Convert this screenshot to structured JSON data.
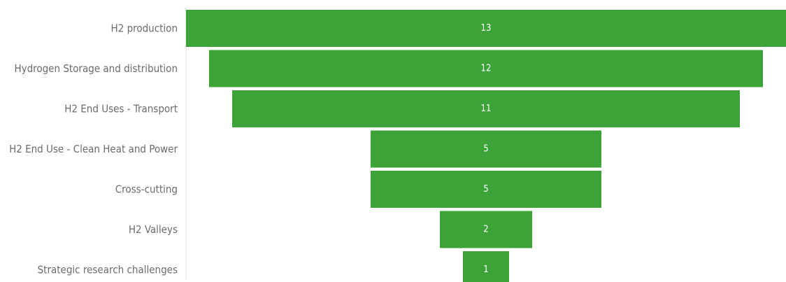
{
  "chart_data": {
    "type": "funnel",
    "title": "",
    "xlabel": "",
    "ylabel": "",
    "categories": [
      "H2 production",
      "Hydrogen Storage and distribution",
      "H2 End Uses - Transport",
      "H2 End Use - Clean Heat and Power",
      "Cross-cutting",
      "H2 Valleys",
      "Strategic research challenges"
    ],
    "values": [
      13,
      12,
      11,
      5,
      5,
      2,
      1
    ],
    "colors": {
      "bar": "#3ba338",
      "value_label": "#ffffff",
      "category_label": "#6b6b6b",
      "axis": "#e3e3e3"
    }
  }
}
